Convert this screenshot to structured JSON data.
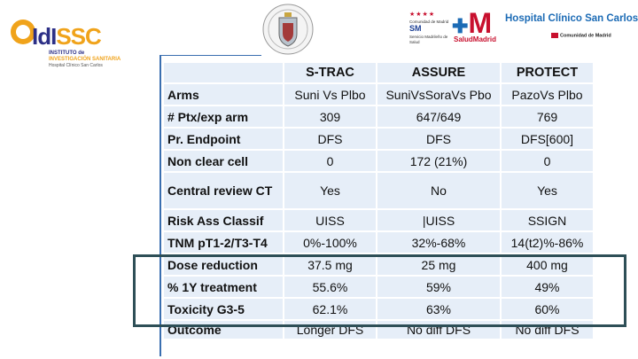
{
  "header": {
    "idissc": {
      "brand_a": "IdI",
      "brand_b": "SSC",
      "line1": "INSTITUTO de",
      "line2": "INVESTIGACIÓN SANITARIA",
      "line3": "Hospital Clínico San Carlos"
    },
    "comunidad": {
      "text": "Comunidad de Madrid",
      "mark": "SM",
      "sub": "Servicio Madrileño de Salud"
    },
    "hcsc": {
      "mark": "M",
      "hospital": "Hospital Clínico San Carlos",
      "salud": "SaludMadrid",
      "comunidad": "Comunidad de Madrid"
    }
  },
  "table": {
    "columns": [
      "",
      "S-TRAC",
      "ASSURE",
      "PROTECT"
    ],
    "rows": [
      {
        "label": "Arms",
        "values": [
          "Suni Vs Plbo",
          "SuniVsSoraVs Pbo",
          "PazoVs Plbo"
        ]
      },
      {
        "label": "# Ptx/exp arm",
        "values": [
          "309",
          "647/649",
          "769"
        ]
      },
      {
        "label": "Pr. Endpoint",
        "values": [
          "DFS",
          "DFS",
          "DFS[600]"
        ]
      },
      {
        "label": "Non clear cell",
        "values": [
          "0",
          "172 (21%)",
          "0"
        ]
      },
      {
        "label": "Central review CT",
        "values": [
          "Yes",
          "No",
          "Yes"
        ]
      },
      {
        "label": "Risk Ass Classif",
        "values": [
          "UISS",
          "|UISS",
          "SSIGN"
        ]
      },
      {
        "label": "TNM pT1-2/T3-T4",
        "values": [
          "0%-100%",
          "32%-68%",
          "14(t2)%-86%"
        ]
      },
      {
        "label": "Dose reduction",
        "values": [
          "37.5 mg",
          "25 mg",
          "400 mg"
        ]
      },
      {
        "label": "% 1Y treatment",
        "values": [
          "55.6%",
          "59%",
          "49%"
        ]
      },
      {
        "label": "Toxicity G3-5",
        "values": [
          "62.1%",
          "63%",
          "60%"
        ]
      },
      {
        "label": "Outcome",
        "values": [
          "Longer DFS",
          "No diff  DFS",
          "No diff DFS"
        ]
      }
    ]
  },
  "colors": {
    "cell_bg": "#e6eef8",
    "highlight_border": "#2e4f57",
    "frame": "#3a6fb0"
  }
}
